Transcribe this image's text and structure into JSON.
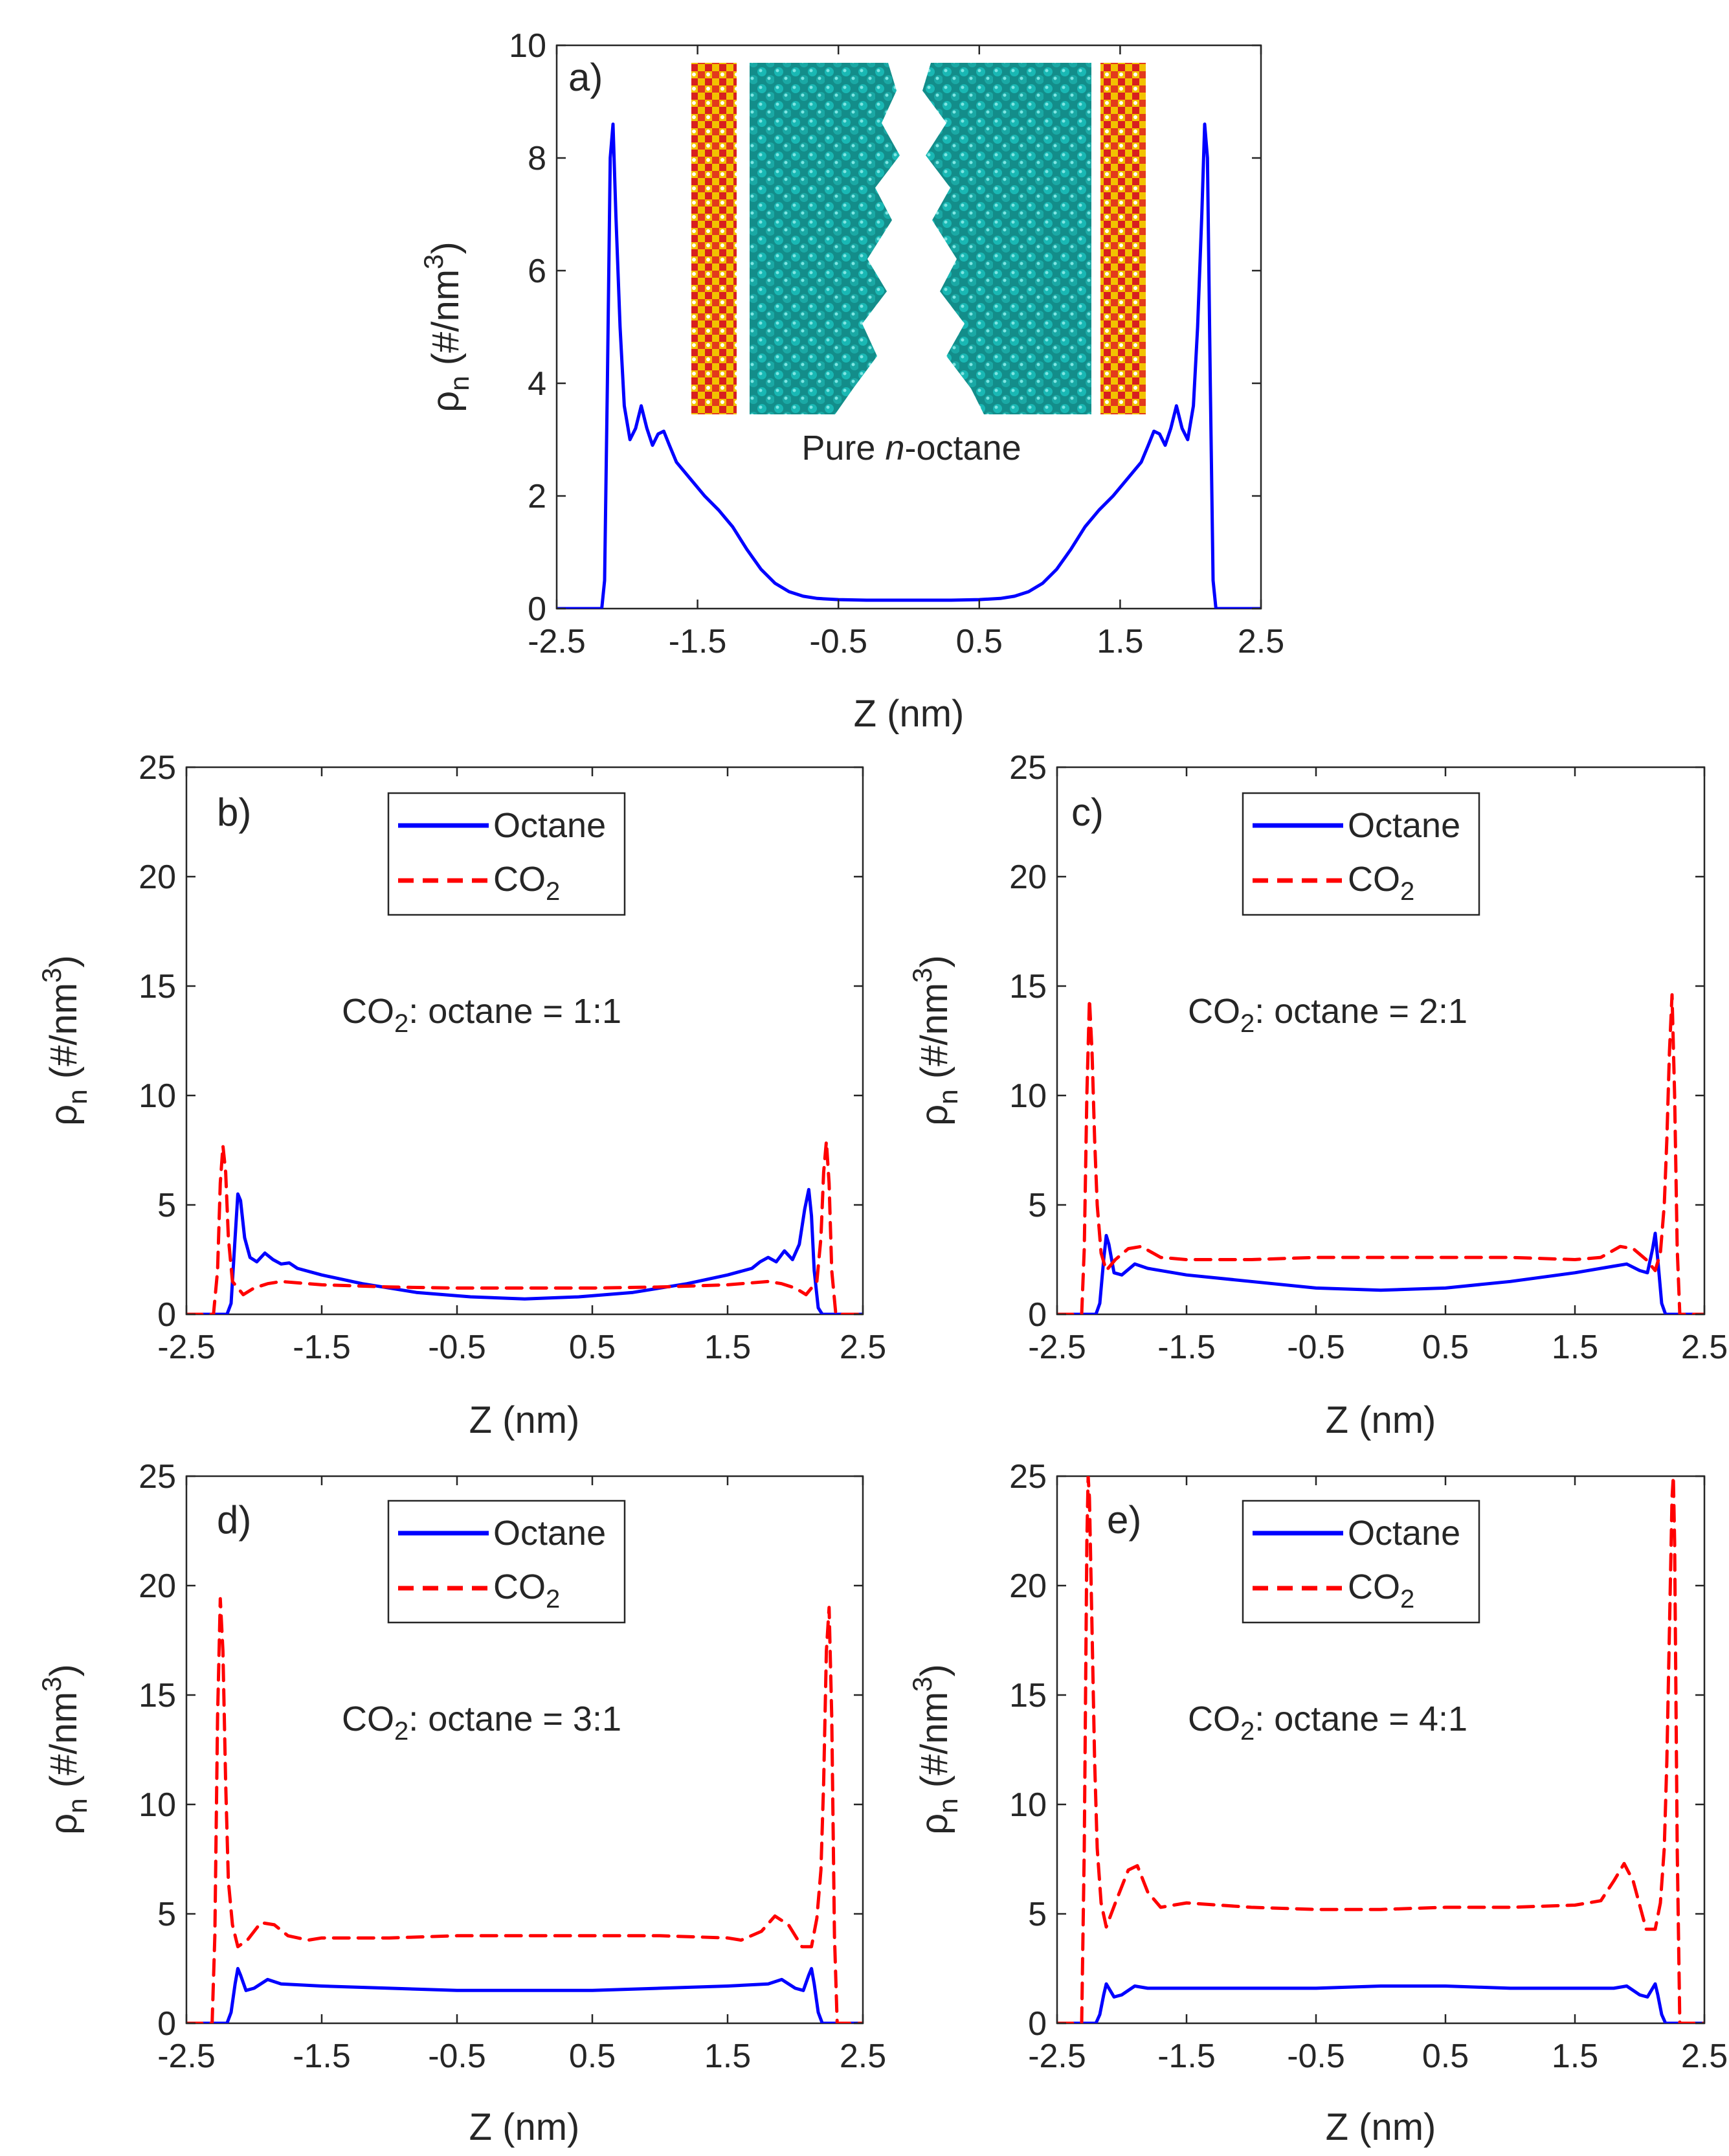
{
  "chart_data": [
    {
      "id": "a",
      "type": "line",
      "panel_label": "a)",
      "xlabel": "Z (nm)",
      "ylabel": "ρn (#/nm3)",
      "ylabel_main": "ρ",
      "ylabel_sub": "n",
      "ylabel_rest": " (#/nm",
      "ylabel_sup": "3",
      "ylabel_close": ")",
      "xlim": [
        -2.5,
        2.5
      ],
      "ylim": [
        0,
        10
      ],
      "xticks": [
        "-2.5",
        "-1.5",
        "-0.5",
        "0.5",
        "1.5",
        "2.5"
      ],
      "yticks": [
        "0",
        "2",
        "4",
        "6",
        "8",
        "10"
      ],
      "inset_caption_pre": "Pure ",
      "inset_caption_italic": "n",
      "inset_caption_post": "-octane",
      "series": [
        {
          "name": "Octane",
          "color": "#0000ff",
          "style": "solid",
          "x": [
            -2.5,
            -2.18,
            -2.16,
            -2.14,
            -2.12,
            -2.1,
            -2.08,
            -2.05,
            -2.02,
            -1.98,
            -1.94,
            -1.9,
            -1.86,
            -1.82,
            -1.78,
            -1.74,
            -1.7,
            -1.65,
            -1.55,
            -1.45,
            -1.35,
            -1.25,
            -1.15,
            -1.05,
            -0.95,
            -0.85,
            -0.75,
            -0.65,
            -0.5,
            -0.3,
            0,
            0.3,
            0.5,
            0.65,
            0.75,
            0.85,
            0.95,
            1.05,
            1.15,
            1.25,
            1.35,
            1.45,
            1.55,
            1.65,
            1.7,
            1.74,
            1.78,
            1.82,
            1.86,
            1.9,
            1.94,
            1.98,
            2.02,
            2.05,
            2.08,
            2.1,
            2.12,
            2.14,
            2.16,
            2.18,
            2.5
          ],
          "y": [
            0,
            0,
            0.5,
            4.0,
            8.0,
            8.6,
            7.0,
            5.0,
            3.6,
            3.0,
            3.2,
            3.6,
            3.2,
            2.9,
            3.1,
            3.15,
            2.9,
            2.6,
            2.3,
            2.0,
            1.75,
            1.45,
            1.05,
            0.7,
            0.45,
            0.3,
            0.22,
            0.18,
            0.16,
            0.15,
            0.15,
            0.15,
            0.16,
            0.18,
            0.22,
            0.3,
            0.45,
            0.7,
            1.05,
            1.45,
            1.75,
            2.0,
            2.3,
            2.6,
            2.9,
            3.15,
            3.1,
            2.9,
            3.2,
            3.6,
            3.2,
            3.0,
            3.6,
            5.0,
            7.0,
            8.6,
            8.0,
            4.0,
            0.5,
            0,
            0
          ]
        }
      ]
    },
    {
      "id": "b",
      "type": "line",
      "panel_label": "b)",
      "xlabel": "Z (nm)",
      "ylabel": "ρn (#/nm3)",
      "ylabel_main": "ρ",
      "ylabel_sub": "n",
      "ylabel_rest": " (#/nm",
      "ylabel_sup": "3",
      "ylabel_close": ")",
      "xlim": [
        -2.5,
        2.5
      ],
      "ylim": [
        0,
        25
      ],
      "xticks": [
        "-2.5",
        "-1.5",
        "-0.5",
        "0.5",
        "1.5",
        "2.5"
      ],
      "yticks": [
        "0",
        "5",
        "10",
        "15",
        "20",
        "25"
      ],
      "ratio_pre": "CO",
      "ratio_sub": "2",
      "ratio_post": ": octane = 1:1",
      "legend": [
        "Octane",
        "CO2"
      ],
      "series": [
        {
          "name": "Octane",
          "color": "#0000ff",
          "style": "solid",
          "x": [
            -2.5,
            -2.2,
            -2.17,
            -2.14,
            -2.12,
            -2.1,
            -2.07,
            -2.03,
            -1.98,
            -1.92,
            -1.86,
            -1.8,
            -1.74,
            -1.68,
            -1.5,
            -1.2,
            -0.8,
            -0.4,
            0,
            0.4,
            0.8,
            1.2,
            1.5,
            1.68,
            1.74,
            1.8,
            1.86,
            1.92,
            1.98,
            2.03,
            2.07,
            2.1,
            2.12,
            2.14,
            2.17,
            2.2,
            2.5
          ],
          "y": [
            0,
            0,
            0.5,
            3.5,
            5.5,
            5.2,
            3.5,
            2.6,
            2.4,
            2.8,
            2.5,
            2.3,
            2.35,
            2.1,
            1.8,
            1.4,
            1.0,
            0.8,
            0.7,
            0.8,
            1.0,
            1.4,
            1.8,
            2.1,
            2.4,
            2.6,
            2.4,
            2.9,
            2.5,
            3.2,
            4.8,
            5.7,
            4.5,
            2.0,
            0.3,
            0,
            0
          ]
        },
        {
          "name": "CO2",
          "color": "#ff0000",
          "style": "dashed",
          "x": [
            -2.5,
            -2.3,
            -2.27,
            -2.25,
            -2.23,
            -2.21,
            -2.19,
            -2.16,
            -2.12,
            -2.08,
            -2.0,
            -1.9,
            -1.8,
            -1.5,
            -1.0,
            -0.5,
            0,
            0.5,
            1.0,
            1.5,
            1.8,
            1.9,
            2.0,
            2.08,
            2.12,
            2.16,
            2.19,
            2.21,
            2.23,
            2.25,
            2.27,
            2.3,
            2.5
          ],
          "y": [
            0,
            0,
            2.0,
            6.0,
            7.7,
            6.5,
            3.5,
            1.5,
            1.2,
            0.9,
            1.2,
            1.4,
            1.5,
            1.35,
            1.25,
            1.2,
            1.2,
            1.2,
            1.25,
            1.35,
            1.5,
            1.4,
            1.2,
            0.9,
            1.2,
            1.5,
            3.5,
            6.5,
            7.9,
            6.0,
            2.0,
            0,
            0
          ]
        }
      ]
    },
    {
      "id": "c",
      "type": "line",
      "panel_label": "c)",
      "xlabel": "Z (nm)",
      "ylabel": "ρn (#/nm3)",
      "ylabel_main": "ρ",
      "ylabel_sub": "n",
      "ylabel_rest": " (#/nm",
      "ylabel_sup": "3",
      "ylabel_close": ")",
      "xlim": [
        -2.5,
        2.5
      ],
      "ylim": [
        0,
        25
      ],
      "xticks": [
        "-2.5",
        "-1.5",
        "-0.5",
        "0.5",
        "1.5",
        "2.5"
      ],
      "yticks": [
        "0",
        "5",
        "10",
        "15",
        "20",
        "25"
      ],
      "ratio_pre": "CO",
      "ratio_sub": "2",
      "ratio_post": ": octane = 2:1",
      "legend": [
        "Octane",
        "CO2"
      ],
      "series": [
        {
          "name": "Octane",
          "color": "#0000ff",
          "style": "solid",
          "x": [
            -2.5,
            -2.2,
            -2.17,
            -2.14,
            -2.12,
            -2.1,
            -2.06,
            -2.0,
            -1.9,
            -1.8,
            -1.5,
            -1.0,
            -0.5,
            0,
            0.5,
            1.0,
            1.5,
            1.8,
            1.9,
            2.0,
            2.06,
            2.1,
            2.12,
            2.14,
            2.17,
            2.2,
            2.5
          ],
          "y": [
            0,
            0,
            0.5,
            2.5,
            3.6,
            3.2,
            1.9,
            1.8,
            2.3,
            2.1,
            1.8,
            1.5,
            1.2,
            1.1,
            1.2,
            1.5,
            1.9,
            2.2,
            2.3,
            2.0,
            1.9,
            3.0,
            3.7,
            2.5,
            0.5,
            0,
            0
          ]
        },
        {
          "name": "CO2",
          "color": "#ff0000",
          "style": "dashed",
          "x": [
            -2.5,
            -2.31,
            -2.29,
            -2.27,
            -2.25,
            -2.23,
            -2.21,
            -2.19,
            -2.16,
            -2.12,
            -2.05,
            -1.95,
            -1.85,
            -1.7,
            -1.5,
            -1.0,
            -0.5,
            0,
            0.5,
            1.0,
            1.5,
            1.7,
            1.85,
            1.95,
            2.05,
            2.12,
            2.16,
            2.19,
            2.21,
            2.23,
            2.25,
            2.27,
            2.29,
            2.31,
            2.5
          ],
          "y": [
            0,
            0,
            3.0,
            10.0,
            14.4,
            12.0,
            8.0,
            5.0,
            2.8,
            2.0,
            2.5,
            3.0,
            3.1,
            2.6,
            2.5,
            2.5,
            2.6,
            2.6,
            2.6,
            2.6,
            2.5,
            2.6,
            3.1,
            3.0,
            2.5,
            2.0,
            2.8,
            5.0,
            8.0,
            12.0,
            14.6,
            10.0,
            3.0,
            0,
            0
          ]
        }
      ]
    },
    {
      "id": "d",
      "type": "line",
      "panel_label": "d)",
      "xlabel": "Z (nm)",
      "ylabel": "ρn (#/nm3)",
      "ylabel_main": "ρ",
      "ylabel_sub": "n",
      "ylabel_rest": " (#/nm",
      "ylabel_sup": "3",
      "ylabel_close": ")",
      "xlim": [
        -2.5,
        2.5
      ],
      "ylim": [
        0,
        25
      ],
      "xticks": [
        "-2.5",
        "-1.5",
        "-0.5",
        "0.5",
        "1.5",
        "2.5"
      ],
      "yticks": [
        "0",
        "5",
        "10",
        "15",
        "20",
        "25"
      ],
      "ratio_pre": "CO",
      "ratio_sub": "2",
      "ratio_post": ": octane = 3:1",
      "legend": [
        "Octane",
        "CO2"
      ],
      "series": [
        {
          "name": "Octane",
          "color": "#0000ff",
          "style": "solid",
          "x": [
            -2.5,
            -2.2,
            -2.17,
            -2.14,
            -2.12,
            -2.1,
            -2.06,
            -2.0,
            -1.9,
            -1.8,
            -1.5,
            -1.0,
            -0.5,
            0,
            0.5,
            1.0,
            1.5,
            1.8,
            1.9,
            2.0,
            2.06,
            2.1,
            2.12,
            2.14,
            2.17,
            2.2,
            2.5
          ],
          "y": [
            0,
            0,
            0.5,
            1.8,
            2.5,
            2.2,
            1.5,
            1.6,
            2.0,
            1.8,
            1.7,
            1.6,
            1.5,
            1.5,
            1.5,
            1.6,
            1.7,
            1.8,
            2.0,
            1.6,
            1.5,
            2.2,
            2.5,
            1.8,
            0.5,
            0,
            0
          ]
        },
        {
          "name": "CO2",
          "color": "#ff0000",
          "style": "dashed",
          "x": [
            -2.5,
            -2.31,
            -2.29,
            -2.27,
            -2.25,
            -2.23,
            -2.21,
            -2.19,
            -2.16,
            -2.12,
            -2.05,
            -1.95,
            -1.85,
            -1.75,
            -1.6,
            -1.5,
            -1.0,
            -0.5,
            0,
            0.5,
            1.0,
            1.5,
            1.6,
            1.75,
            1.85,
            1.95,
            2.05,
            2.12,
            2.16,
            2.19,
            2.21,
            2.23,
            2.25,
            2.27,
            2.29,
            2.31,
            2.5
          ],
          "y": [
            0,
            0,
            4.0,
            14.0,
            19.4,
            17.0,
            11.0,
            6.5,
            4.5,
            3.5,
            3.8,
            4.6,
            4.5,
            4.0,
            3.8,
            3.9,
            3.9,
            4.0,
            4.0,
            4.0,
            4.0,
            3.9,
            3.8,
            4.2,
            4.9,
            4.5,
            3.5,
            3.5,
            4.8,
            7.0,
            11.0,
            17.0,
            19.0,
            14.0,
            4.0,
            0,
            0
          ]
        }
      ]
    },
    {
      "id": "e",
      "type": "line",
      "panel_label": "e)",
      "xlabel": "Z (nm)",
      "ylabel": "ρn (#/nm3)",
      "ylabel_main": "ρ",
      "ylabel_sub": "n",
      "ylabel_rest": " (#/nm",
      "ylabel_sup": "3",
      "ylabel_close": ")",
      "xlim": [
        -2.5,
        2.5
      ],
      "ylim": [
        0,
        25
      ],
      "xticks": [
        "-2.5",
        "-1.5",
        "-0.5",
        "0.5",
        "1.5",
        "2.5"
      ],
      "yticks": [
        "0",
        "5",
        "10",
        "15",
        "20",
        "25"
      ],
      "ratio_pre": "CO",
      "ratio_sub": "2",
      "ratio_post": ": octane = 4:1",
      "legend": [
        "Octane",
        "CO2"
      ],
      "series": [
        {
          "name": "Octane",
          "color": "#0000ff",
          "style": "solid",
          "x": [
            -2.5,
            -2.2,
            -2.17,
            -2.14,
            -2.12,
            -2.1,
            -2.06,
            -2.0,
            -1.9,
            -1.8,
            -1.5,
            -1.0,
            -0.5,
            0,
            0.5,
            1.0,
            1.5,
            1.8,
            1.9,
            2.0,
            2.06,
            2.1,
            2.12,
            2.14,
            2.17,
            2.2,
            2.5
          ],
          "y": [
            0,
            0,
            0.4,
            1.3,
            1.8,
            1.6,
            1.2,
            1.3,
            1.7,
            1.6,
            1.6,
            1.6,
            1.6,
            1.7,
            1.7,
            1.6,
            1.6,
            1.6,
            1.7,
            1.3,
            1.2,
            1.6,
            1.8,
            1.3,
            0.4,
            0,
            0
          ]
        },
        {
          "name": "CO2",
          "color": "#ff0000",
          "style": "dashed",
          "x": [
            -2.5,
            -2.31,
            -2.29,
            -2.27,
            -2.26,
            -2.25,
            -2.23,
            -2.21,
            -2.19,
            -2.16,
            -2.12,
            -2.05,
            -1.95,
            -1.88,
            -1.8,
            -1.7,
            -1.5,
            -1.0,
            -0.5,
            0,
            0.5,
            1.0,
            1.5,
            1.6,
            1.7,
            1.8,
            1.88,
            1.95,
            2.05,
            2.12,
            2.16,
            2.19,
            2.21,
            2.23,
            2.25,
            2.26,
            2.27,
            2.29,
            2.31,
            2.5
          ],
          "y": [
            0,
            0,
            8.0,
            22.0,
            25.0,
            24.0,
            18.0,
            12.0,
            8.0,
            5.5,
            4.4,
            5.5,
            7.0,
            7.2,
            6.0,
            5.3,
            5.5,
            5.3,
            5.2,
            5.2,
            5.3,
            5.3,
            5.4,
            5.5,
            5.6,
            6.5,
            7.3,
            6.5,
            4.3,
            4.3,
            5.5,
            8.0,
            12.0,
            18.0,
            24.0,
            25.0,
            22.0,
            8.0,
            0,
            0
          ]
        }
      ]
    }
  ]
}
